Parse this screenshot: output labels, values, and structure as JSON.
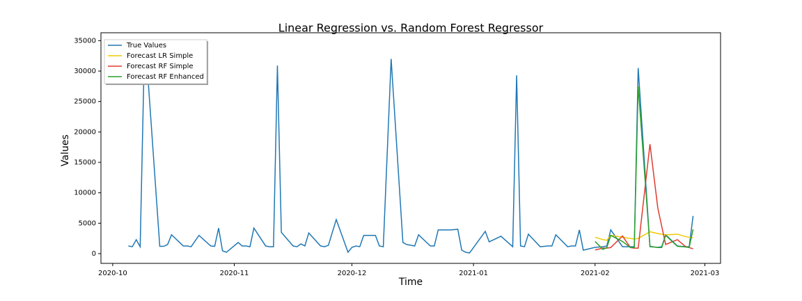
{
  "chart_data": {
    "type": "line",
    "title": "Linear Regression vs. Random Forest Regressor",
    "x_label": "Time",
    "y_label": "Values",
    "xlim": [
      -3,
      155
    ],
    "ylim": [
      -1600,
      36300
    ],
    "xticks": [
      {
        "value": 0,
        "label": "2020-10"
      },
      {
        "value": 31,
        "label": "2020-11"
      },
      {
        "value": 61,
        "label": "2020-12"
      },
      {
        "value": 92,
        "label": "2021-01"
      },
      {
        "value": 123,
        "label": "2021-02"
      },
      {
        "value": 151,
        "label": "2021-03"
      }
    ],
    "yticks": [
      0,
      5000,
      10000,
      15000,
      20000,
      25000,
      30000,
      35000
    ],
    "grid": false,
    "legend": "upper left",
    "series": [
      {
        "name": "True Values",
        "color": "#1f77b4",
        "x": [
          4,
          5,
          6,
          7,
          8,
          9,
          12,
          13,
          14,
          15,
          18,
          19,
          20,
          22,
          25,
          26,
          27,
          28,
          29,
          32,
          33,
          34,
          35,
          36,
          39,
          40,
          41,
          42,
          43,
          46,
          47,
          48,
          49,
          50,
          53,
          54,
          55,
          57,
          60,
          61,
          62,
          63,
          64,
          67,
          68,
          69,
          71,
          74,
          75,
          77,
          78,
          81,
          82,
          83,
          86,
          88,
          89,
          90,
          91,
          95,
          96,
          99,
          102,
          103,
          104,
          105,
          106,
          109,
          111,
          112,
          113,
          116,
          117,
          118,
          119,
          120,
          123,
          125,
          126,
          127,
          130,
          132,
          133,
          134,
          137,
          139,
          140,
          141,
          144,
          146,
          147,
          148
        ],
        "values": [
          1260,
          1140,
          2290,
          1140,
          31000,
          28800,
          1200,
          1200,
          1500,
          3100,
          1260,
          1260,
          1140,
          3000,
          1260,
          1200,
          4200,
          450,
          230,
          1830,
          1260,
          1260,
          1140,
          4200,
          1260,
          1140,
          1140,
          30900,
          3500,
          1260,
          1140,
          1600,
          1260,
          3400,
          1260,
          1140,
          1370,
          5600,
          230,
          1030,
          1260,
          1140,
          3000,
          3000,
          1260,
          1140,
          32000,
          1830,
          1490,
          1260,
          3100,
          1260,
          1260,
          3900,
          3900,
          4000,
          570,
          230,
          110,
          3660,
          1940,
          2860,
          1140,
          29300,
          1260,
          1140,
          3200,
          1140,
          1260,
          1260,
          3100,
          1140,
          1260,
          1260,
          3900,
          570,
          1030,
          1140,
          1260,
          3900,
          1140,
          1140,
          1140,
          30500,
          1140,
          1030,
          1140,
          3100,
          1260,
          1140,
          1140,
          6200
        ]
      },
      {
        "name": "Forecast LR Simple",
        "color": "#f0c800",
        "x": [
          123,
          125,
          126,
          127,
          130,
          132,
          133,
          134,
          137,
          139,
          140,
          141,
          144,
          146,
          147,
          148
        ],
        "values": [
          2700,
          2300,
          2200,
          3000,
          2700,
          2500,
          2400,
          2500,
          3600,
          3300,
          3200,
          3100,
          3200,
          2800,
          2700,
          2600
        ]
      },
      {
        "name": "Forecast RF Simple",
        "color": "#e03a2e",
        "x": [
          123,
          125,
          126,
          127,
          130,
          132,
          133,
          134,
          137,
          139,
          140,
          141,
          144,
          146,
          147,
          148
        ],
        "values": [
          600,
          900,
          900,
          1000,
          2900,
          1000,
          900,
          900,
          18000,
          7500,
          4500,
          1500,
          2300,
          1200,
          1000,
          800
        ]
      },
      {
        "name": "Forecast RF Enhanced",
        "color": "#2ca02c",
        "x": [
          123,
          125,
          126,
          127,
          130,
          132,
          133,
          134,
          137,
          139,
          140,
          141,
          144,
          146,
          147,
          148
        ],
        "values": [
          2000,
          700,
          1000,
          3000,
          2000,
          1000,
          1000,
          27500,
          1200,
          1000,
          1000,
          3000,
          1200,
          1100,
          1000,
          4000
        ]
      }
    ]
  }
}
